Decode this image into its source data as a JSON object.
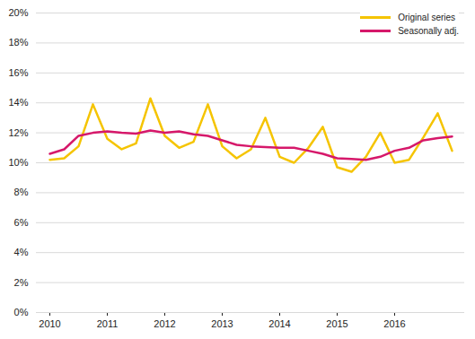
{
  "chart_data": {
    "type": "line",
    "categories": [
      "2010",
      null,
      null,
      null,
      "2011",
      null,
      null,
      null,
      "2012",
      null,
      null,
      null,
      "2013",
      null,
      null,
      null,
      "2014",
      null,
      null,
      null,
      "2015",
      null,
      null,
      null,
      "2016",
      null,
      null,
      null,
      null
    ],
    "series": [
      {
        "name": "Original series",
        "color": "#f5c400",
        "values": [
          10.2,
          10.3,
          11.1,
          13.9,
          11.6,
          10.9,
          11.3,
          14.3,
          11.8,
          11.0,
          11.4,
          13.9,
          11.1,
          10.3,
          10.9,
          13.0,
          10.4,
          10.0,
          11.0,
          12.4,
          9.7,
          9.4,
          10.4,
          12.0,
          10.0,
          10.2,
          11.7,
          13.3,
          10.8
        ]
      },
      {
        "name": "Seasonally adj.",
        "color": "#d6186a",
        "values": [
          10.6,
          10.9,
          11.8,
          12.0,
          12.1,
          12.0,
          11.95,
          12.15,
          12.0,
          12.1,
          11.9,
          11.8,
          11.5,
          11.2,
          11.1,
          11.05,
          11.0,
          11.0,
          10.8,
          10.6,
          10.3,
          10.25,
          10.2,
          10.4,
          10.8,
          11.0,
          11.5,
          11.65,
          11.75
        ]
      }
    ],
    "ylim": [
      0,
      20
    ],
    "yticks": [
      {
        "value": 0,
        "label": "0%"
      },
      {
        "value": 2,
        "label": "2%"
      },
      {
        "value": 4,
        "label": "4%"
      },
      {
        "value": 6,
        "label": "6%"
      },
      {
        "value": 8,
        "label": "8%"
      },
      {
        "value": 10,
        "label": "10%"
      },
      {
        "value": 12,
        "label": "12%"
      },
      {
        "value": 14,
        "label": "14%"
      },
      {
        "value": 16,
        "label": "16%"
      },
      {
        "value": 18,
        "label": "18%"
      },
      {
        "value": 20,
        "label": "20%"
      }
    ],
    "grid": true,
    "legend": "top-right"
  }
}
